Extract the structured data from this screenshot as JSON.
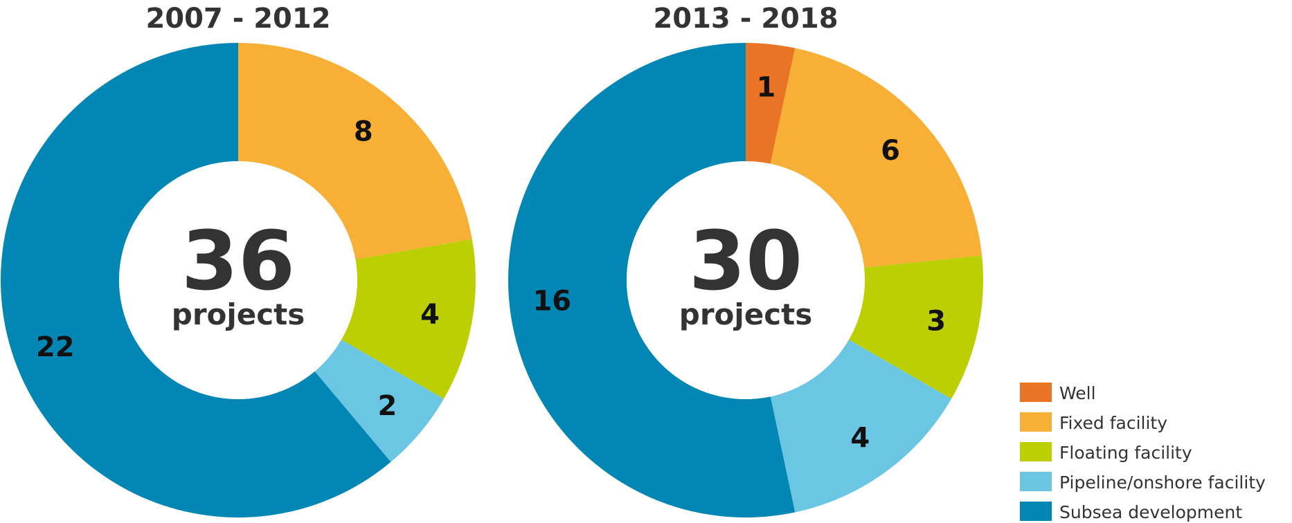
{
  "colors": {
    "Well": "#ea7425",
    "Fixed facility": "#f7b035",
    "Floating facility": "#bccf02",
    "Pipeline/onshore facility": "#6ac6e2",
    "Subsea development": "#0286b3",
    "text": "#333333",
    "label": "#111111"
  },
  "chart_data": [
    {
      "type": "pie",
      "title": "2007 - 2012",
      "center_value": "36",
      "center_label": "projects",
      "categories": [
        "Fixed facility",
        "Floating facility",
        "Pipeline/onshore facility",
        "Subsea development"
      ],
      "values": [
        8,
        4,
        2,
        22
      ]
    },
    {
      "type": "pie",
      "title": "2013 - 2018",
      "center_value": "30",
      "center_label": "projects",
      "categories": [
        "Well",
        "Fixed facility",
        "Floating facility",
        "Pipeline/onshore facility",
        "Subsea development"
      ],
      "values": [
        1,
        6,
        3,
        4,
        16
      ]
    }
  ],
  "legend": {
    "placement": "bottom-right",
    "items": [
      "Well",
      "Fixed facility",
      "Floating facility",
      "Pipeline/onshore facility",
      "Subsea development"
    ]
  }
}
